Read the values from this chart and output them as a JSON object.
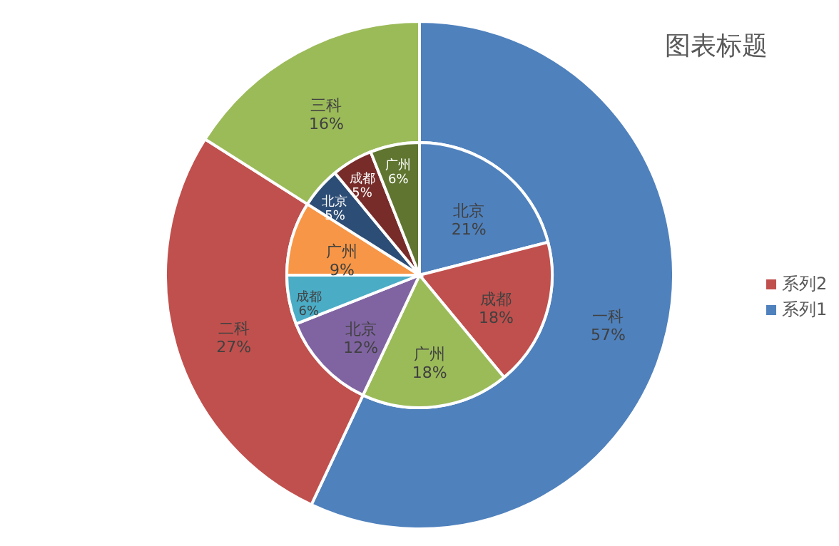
{
  "chart_data": [
    {
      "type": "donut",
      "title": "图表标题",
      "legend": "right",
      "data_labels": true,
      "categories": [
        "一科",
        "二科",
        "三科"
      ],
      "series": [
        {
          "name": "系列2",
          "color": "#c0504d",
          "values": [
            57,
            27,
            16
          ],
          "value_labels": [
            "57%",
            "27%",
            "16%"
          ],
          "colors": [
            "#4f81bd",
            "#c0504d",
            "#9bbb59"
          ]
        }
      ]
    },
    {
      "type": "pie",
      "legend": "right",
      "data_labels": true,
      "categories": [
        "北京",
        "成都",
        "广州",
        "北京",
        "成都",
        "广州",
        "北京",
        "成都",
        "广州"
      ],
      "series": [
        {
          "name": "系列1",
          "color": "#4f81bd",
          "values": [
            21,
            18,
            18,
            12,
            6,
            9,
            5,
            5,
            6
          ],
          "value_labels": [
            "21%",
            "18%",
            "18%",
            "12%",
            "6%",
            "9%",
            "5%",
            "5%",
            "6%"
          ],
          "colors": [
            "#4f81bd",
            "#c0504d",
            "#9bbb59",
            "#8064a2",
            "#4bacc6",
            "#f79646",
            "#2c4d75",
            "#772c2a",
            "#5f7530"
          ]
        }
      ]
    }
  ]
}
